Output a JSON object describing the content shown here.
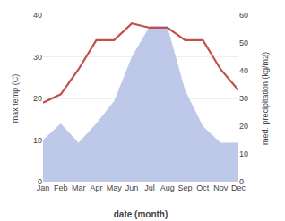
{
  "chart_data": {
    "type": "line",
    "xlabel": "date (month)",
    "ylabel": "max temp (C)",
    "y2label": "med. precipitation (kg/m2)",
    "categories": [
      "Jan",
      "Feb",
      "Mar",
      "Apr",
      "May",
      "Jun",
      "Jul",
      "Aug",
      "Sep",
      "Oct",
      "Nov",
      "Dec"
    ],
    "series": [
      {
        "type": "area",
        "axis": "y2",
        "color": "#bec8e8",
        "values": [
          15,
          21,
          14,
          21,
          29,
          45,
          56,
          56,
          33,
          20,
          14,
          14
        ]
      },
      {
        "type": "line",
        "color": "#c0504d",
        "values": [
          19,
          21,
          27,
          34,
          34,
          38,
          37,
          37,
          34,
          34,
          27,
          22
        ]
      }
    ],
    "ylim": [
      0,
      40
    ],
    "yticks": [
      0,
      10,
      20,
      30,
      40
    ],
    "y2lim": [
      0,
      60
    ],
    "y2ticks": [
      0,
      10,
      20,
      30,
      40,
      50,
      60
    ],
    "grid": true
  }
}
